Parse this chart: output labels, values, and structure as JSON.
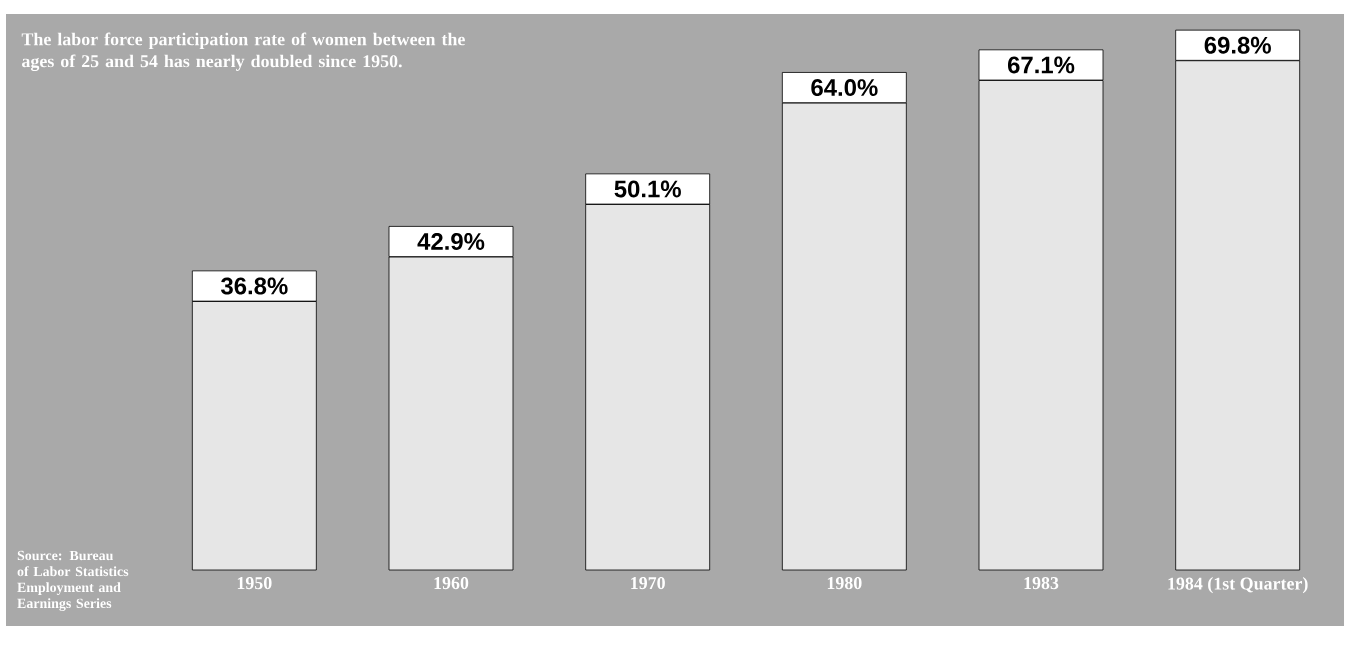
{
  "chart_data": {
    "type": "bar",
    "title": "The labor force participation rate of women between the ages of 25 and 54 has nearly doubled since 1950.",
    "categories": [
      "1950",
      "1960",
      "1970",
      "1980",
      "1983",
      "1984 (1st Quarter)"
    ],
    "values": [
      36.8,
      42.9,
      50.1,
      64.0,
      67.1,
      69.8
    ],
    "value_labels": [
      "36.8%",
      "42.9%",
      "50.1%",
      "64.0%",
      "67.1%",
      "69.8%"
    ],
    "color": "#e6e6e6",
    "annotations": [
      "Source: Bureau of Labor Statistics Employment and Earnings Series"
    ]
  }
}
